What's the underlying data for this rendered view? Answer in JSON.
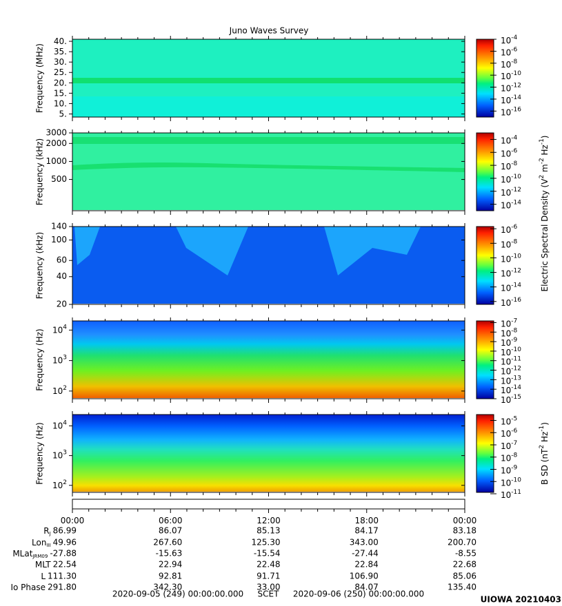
{
  "chart_data": [
    {
      "type": "spectrogram",
      "title": "Juno Waves Survey",
      "ylabel": "Frequency (MHz)",
      "yscale": "linear",
      "ylim": [
        3.5,
        41
      ],
      "yticks": [
        {
          "value": 5,
          "label": "5."
        },
        {
          "value": 10,
          "label": "10."
        },
        {
          "value": 15,
          "label": "15."
        },
        {
          "value": 20,
          "label": "20."
        },
        {
          "value": 25,
          "label": "25."
        },
        {
          "value": 30,
          "label": "30."
        },
        {
          "value": 35,
          "label": "35."
        },
        {
          "value": 40,
          "label": "40."
        }
      ],
      "clim": [
        1e-17,
        0.0001
      ],
      "cticks": [
        {
          "value": 0.0001,
          "label": "10",
          "exp": "-4"
        },
        {
          "value": 1e-06,
          "label": "10",
          "exp": "-6"
        },
        {
          "value": 1e-08,
          "label": "10",
          "exp": "-8"
        },
        {
          "value": 1e-10,
          "label": "10",
          "exp": "-10"
        },
        {
          "value": 1e-12,
          "label": "10",
          "exp": "-12"
        },
        {
          "value": 1e-14,
          "label": "10",
          "exp": "-14"
        },
        {
          "value": 1e-16,
          "label": "10",
          "exp": "-16"
        }
      ]
    },
    {
      "type": "spectrogram",
      "ylabel": "Frequency (kHz)",
      "yscale": "log",
      "ylim": [
        150,
        3000
      ],
      "yticks": [
        500,
        1000,
        2000,
        3000
      ],
      "clim": [
        1e-15,
        0.001
      ],
      "cticks": [
        {
          "value": 0.0001,
          "label": "10",
          "exp": "-4"
        },
        {
          "value": 1e-06,
          "label": "10",
          "exp": "-6"
        },
        {
          "value": 1e-08,
          "label": "10",
          "exp": "-8"
        },
        {
          "value": 1e-10,
          "label": "10",
          "exp": "-10"
        },
        {
          "value": 1e-12,
          "label": "10",
          "exp": "-12"
        },
        {
          "value": 1e-14,
          "label": "10",
          "exp": "-14"
        }
      ],
      "colorbar_label": [
        "Electric Spectral Density (V",
        "2",
        " m",
        "-2",
        " Hz",
        "-1",
        ")"
      ]
    },
    {
      "type": "spectrogram",
      "ylabel": "Frequency (kHz)",
      "yscale": "log",
      "ylim": [
        20,
        140
      ],
      "yticks": [
        20,
        40,
        60,
        100,
        140
      ],
      "clim": [
        4e-17,
        2e-06
      ],
      "cticks": [
        {
          "value": 1e-06,
          "label": "10",
          "exp": "-6"
        },
        {
          "value": 1e-08,
          "label": "10",
          "exp": "-8"
        },
        {
          "value": 1e-10,
          "label": "10",
          "exp": "-10"
        },
        {
          "value": 1e-12,
          "label": "10",
          "exp": "-12"
        },
        {
          "value": 1e-14,
          "label": "10",
          "exp": "-14"
        },
        {
          "value": 1e-16,
          "label": "10",
          "exp": "-16"
        }
      ]
    },
    {
      "type": "spectrogram",
      "ylabel": "Frequency (Hz)",
      "yscale": "log",
      "ylim": [
        56,
        20000
      ],
      "yticks": [
        {
          "value": 100,
          "label": "10",
          "exp": "2"
        },
        {
          "value": 1000,
          "label": "10",
          "exp": "3"
        },
        {
          "value": 10000,
          "label": "10",
          "exp": "4"
        }
      ],
      "clim": [
        1e-15,
        1.5e-07
      ],
      "cticks": [
        {
          "value": 1e-07,
          "label": "10",
          "exp": "-7"
        },
        {
          "value": 1e-08,
          "label": "10",
          "exp": "-8"
        },
        {
          "value": 1e-09,
          "label": "10",
          "exp": "-9"
        },
        {
          "value": 1e-10,
          "label": "10",
          "exp": "-10"
        },
        {
          "value": 1e-11,
          "label": "10",
          "exp": "-11"
        },
        {
          "value": 1e-12,
          "label": "10",
          "exp": "-12"
        },
        {
          "value": 1e-13,
          "label": "10",
          "exp": "-13"
        },
        {
          "value": 1e-14,
          "label": "10",
          "exp": "-14"
        },
        {
          "value": 1e-15,
          "label": "10",
          "exp": "-15"
        }
      ]
    },
    {
      "type": "spectrogram",
      "ylabel": "Frequency (Hz)",
      "yscale": "log",
      "ylim": [
        58,
        24000
      ],
      "yticks": [
        {
          "value": 100,
          "label": "10",
          "exp": "2"
        },
        {
          "value": 1000,
          "label": "10",
          "exp": "3"
        },
        {
          "value": 10000,
          "label": "10",
          "exp": "4"
        }
      ],
      "clim": [
        1.3e-11,
        3e-05
      ],
      "cticks": [
        {
          "value": 1e-05,
          "label": "10",
          "exp": "-5"
        },
        {
          "value": 1e-06,
          "label": "10",
          "exp": "-6"
        },
        {
          "value": 1e-07,
          "label": "10",
          "exp": "-7"
        },
        {
          "value": 1e-08,
          "label": "10",
          "exp": "-8"
        },
        {
          "value": 1e-09,
          "label": "10",
          "exp": "-9"
        },
        {
          "value": 1e-10,
          "label": "10",
          "exp": "-10"
        },
        {
          "value": 1e-11,
          "label": "10",
          "exp": "-11"
        }
      ],
      "colorbar_label": [
        "B SD (nT",
        "2",
        " Hz",
        "-1",
        ")"
      ]
    }
  ],
  "ephemeris": {
    "xlim": [
      0,
      24
    ],
    "xticks": [
      {
        "value": 0,
        "label": "00:00"
      },
      {
        "value": 6,
        "label": "06:00"
      },
      {
        "value": 12,
        "label": "12:00"
      },
      {
        "value": 18,
        "label": "18:00"
      },
      {
        "value": 24,
        "label": "00:00"
      }
    ],
    "xminorticks": [
      1,
      2,
      3,
      4,
      5,
      7,
      8,
      9,
      10,
      11,
      13,
      14,
      15,
      16,
      17,
      19,
      20,
      21,
      22,
      23
    ],
    "rows": [
      {
        "name": [
          "R",
          "J"
        ],
        "values": [
          "86.99",
          "86.07",
          "85.13",
          "84.17",
          "83.18"
        ]
      },
      {
        "name": [
          "Lon",
          "III"
        ],
        "values": [
          "49.96",
          "267.60",
          "125.30",
          "343.00",
          "200.70"
        ]
      },
      {
        "name": [
          "MLat",
          "JRM09"
        ],
        "values": [
          "-27.88",
          "-15.63",
          "-15.54",
          "-27.44",
          "-8.55"
        ]
      },
      {
        "name": [
          "MLT"
        ],
        "values": [
          "22.54",
          "22.94",
          "22.48",
          "22.84",
          "22.68"
        ]
      },
      {
        "name": [
          "L"
        ],
        "values": [
          "111.30",
          "92.81",
          "91.71",
          "106.90",
          "85.06"
        ]
      },
      {
        "name": [
          "Io Phase"
        ],
        "values": [
          "291.80",
          "342.30",
          "33.00",
          "84.07",
          "135.40"
        ]
      }
    ],
    "footer": [
      "2020-09-05 (249) 00:00:00.000",
      "SCET",
      "2020-09-06 (250) 00:00:00.000"
    ],
    "stamp": "UIOWA 20210403"
  }
}
